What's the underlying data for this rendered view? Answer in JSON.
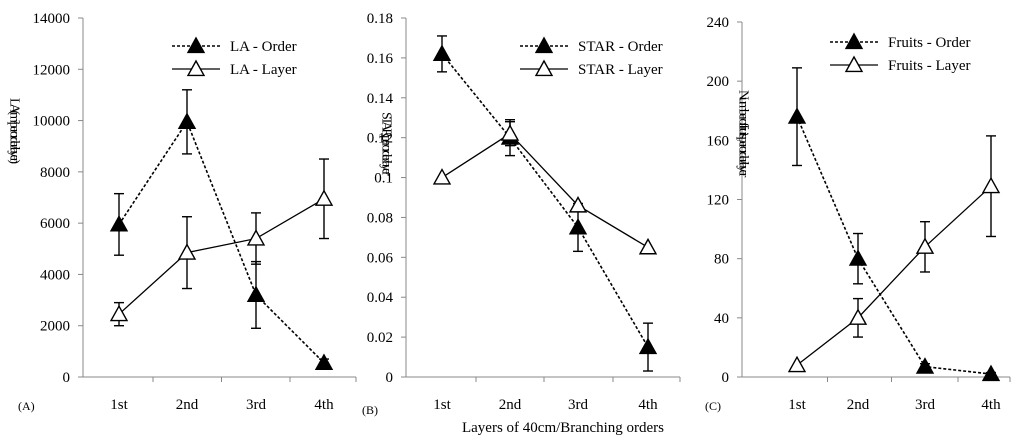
{
  "chart_data": [
    {
      "type": "line",
      "panel_label": "(A)",
      "ylabel": "LA (m² per order/layer)",
      "ylim": [
        0,
        14000
      ],
      "yticks": [
        "0",
        "2000",
        "4000",
        "6000",
        "8000",
        "10000",
        "12000",
        "14000"
      ],
      "categories": [
        "1st",
        "2nd",
        "3rd",
        "4th"
      ],
      "legend_position": "top-center",
      "series": [
        {
          "name": "LA - Order",
          "marker": "filled-triangle",
          "line": "dashed",
          "values": [
            5950,
            9950,
            3200,
            550
          ],
          "err": [
            1200,
            1250,
            1300,
            150
          ]
        },
        {
          "name": "LA - Layer",
          "marker": "open-triangle",
          "line": "solid",
          "values": [
            2450,
            4850,
            5400,
            6950
          ],
          "err": [
            450,
            1400,
            1000,
            1550
          ]
        }
      ]
    },
    {
      "type": "line",
      "panel_label": "(B)",
      "ylabel": "STAR per order/layer",
      "ylim": [
        0,
        0.18
      ],
      "yticks": [
        "0",
        "0.02",
        "0.04",
        "0.06",
        "0.08",
        "0.1",
        "0.12",
        "0.14",
        "0.16",
        "0.18"
      ],
      "categories": [
        "1st",
        "2nd",
        "3rd",
        "4th"
      ],
      "xlabel": "Layers of 40cm/Branching orders",
      "legend_position": "top-right",
      "series": [
        {
          "name": "STAR - Order",
          "marker": "filled-triangle",
          "line": "dashed",
          "values": [
            0.162,
            0.12,
            0.075,
            0.015
          ],
          "err": [
            0.009,
            0.009,
            0.012,
            0.012
          ]
        },
        {
          "name": "STAR - Layer",
          "marker": "open-triangle",
          "line": "solid",
          "values": [
            0.1,
            0.122,
            0.086,
            0.065
          ],
          "err": [
            0,
            0.006,
            0,
            0
          ]
        }
      ]
    },
    {
      "type": "line",
      "panel_label": "(C)",
      "ylabel": "Number of fruits per order/layer",
      "ylim": [
        0,
        240
      ],
      "yticks": [
        "0",
        "40",
        "80",
        "120",
        "160",
        "200",
        "240"
      ],
      "categories": [
        "1st",
        "2nd",
        "3rd",
        "4th"
      ],
      "legend_position": "top-right",
      "series": [
        {
          "name": "Fruits - Order",
          "marker": "filled-triangle",
          "line": "dashed",
          "values": [
            176,
            80,
            7,
            2
          ],
          "err": [
            33,
            17,
            2,
            1
          ]
        },
        {
          "name": "Fruits - Layer",
          "marker": "open-triangle",
          "line": "solid",
          "values": [
            8,
            40,
            88,
            129
          ],
          "err": [
            0,
            13,
            17,
            34
          ]
        }
      ]
    }
  ]
}
